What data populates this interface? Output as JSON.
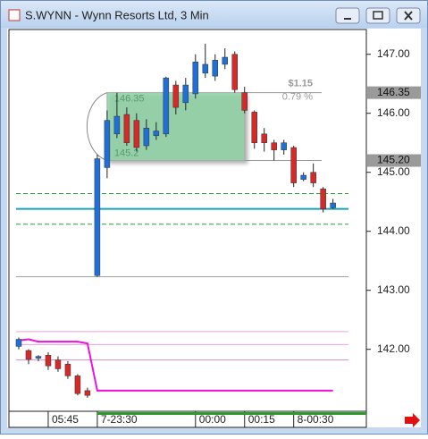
{
  "window_title": "S.WYNN - Wynn Resorts Ltd, 3 Min",
  "chart_data": {
    "type": "candlestick",
    "up_color": "#1f6fd6",
    "down_color": "#d42a2a",
    "x": [
      0,
      1,
      2,
      3,
      4,
      5,
      6,
      7,
      8,
      9,
      10,
      11,
      12,
      13,
      14,
      15,
      16,
      17,
      18,
      19,
      20,
      21,
      22,
      23,
      24,
      25,
      26,
      27,
      28,
      29,
      30,
      31,
      32
    ],
    "open": [
      142.05,
      141.98,
      141.85,
      141.9,
      141.82,
      141.75,
      141.55,
      141.3,
      143.25,
      145.08,
      145.65,
      145.98,
      145.88,
      145.45,
      145.62,
      145.65,
      146.48,
      146.18,
      146.33,
      146.68,
      146.63,
      146.83,
      147.0,
      146.35,
      146.02,
      145.65,
      145.5,
      145.38,
      145.42,
      144.88,
      145.0,
      144.72,
      144.4
    ],
    "high": [
      142.2,
      142.0,
      141.9,
      141.95,
      141.88,
      141.8,
      141.58,
      141.35,
      145.3,
      146.05,
      146.35,
      146.1,
      146.0,
      145.9,
      145.85,
      146.62,
      146.55,
      146.6,
      147.0,
      147.18,
      147.0,
      147.1,
      147.05,
      146.45,
      146.05,
      145.75,
      145.55,
      145.55,
      145.45,
      145.0,
      145.15,
      144.75,
      144.55
    ],
    "low": [
      142.0,
      141.75,
      141.8,
      141.65,
      141.62,
      141.5,
      141.22,
      141.18,
      143.23,
      144.9,
      145.58,
      145.45,
      145.35,
      145.38,
      145.55,
      145.6,
      145.98,
      146.05,
      146.25,
      146.6,
      146.55,
      146.75,
      146.35,
      146.0,
      145.4,
      145.35,
      145.2,
      145.3,
      144.75,
      144.85,
      144.75,
      144.32,
      144.38
    ],
    "close": [
      142.17,
      141.83,
      141.88,
      141.72,
      141.67,
      141.55,
      141.25,
      141.22,
      145.23,
      145.88,
      145.95,
      145.5,
      145.42,
      145.75,
      145.7,
      146.6,
      146.1,
      146.48,
      146.87,
      146.83,
      146.9,
      146.95,
      146.4,
      146.05,
      145.5,
      145.5,
      145.38,
      145.5,
      144.82,
      144.95,
      144.82,
      144.38,
      144.48
    ],
    "indicator": {
      "color": "#ee10dd",
      "values": [
        142.15,
        142.17,
        142.13,
        142.13,
        142.13,
        142.13,
        142.13,
        142.1,
        141.3,
        141.3,
        141.3,
        141.3,
        141.3,
        141.3,
        141.3,
        141.3,
        141.3,
        141.3,
        141.3,
        141.3,
        141.3,
        141.3,
        141.3,
        141.3,
        141.3,
        141.3,
        141.3,
        141.3,
        141.3,
        141.3,
        141.3,
        141.3,
        141.3
      ]
    },
    "levels": [
      {
        "value": 142.3,
        "color": "#e8a8d8"
      },
      {
        "value": 142.08,
        "color": "#f0a0dc"
      },
      {
        "value": 141.82,
        "color": "#c890c8"
      },
      {
        "value": 143.23,
        "color": "#a0a0a0"
      },
      {
        "value": 144.64,
        "color": "#2aa02a",
        "dashed": true
      },
      {
        "value": 144.12,
        "color": "#2aa02a",
        "dashed": true
      },
      {
        "value": 144.38,
        "color": "#1aa0b8"
      }
    ],
    "measure": {
      "start": 9,
      "end": 23,
      "high": 146.35,
      "low": 145.2,
      "change": {
        "value": 1.15,
        "label": "$1.15"
      },
      "percent": {
        "value": 0.79,
        "label": "0.79 %"
      }
    },
    "price_markers": [
      {
        "value": 146.35,
        "label": "146.35"
      },
      {
        "value": 145.2,
        "label": "145.20"
      }
    ],
    "xlim": [
      -1,
      35.4
    ],
    "ylim": [
      140.95,
      147.42
    ],
    "xticks": [
      {
        "value": 3,
        "label": "05:45"
      },
      {
        "value": 8,
        "label": "7-23:30"
      },
      {
        "value": 18,
        "label": "00:00"
      },
      {
        "value": 23,
        "label": "00:15"
      },
      {
        "value": 28,
        "label": "8-00:30"
      }
    ],
    "yticks": [
      {
        "value": 147,
        "label": "147.00"
      },
      {
        "value": 146,
        "label": "146.00"
      },
      {
        "value": 145,
        "label": "145.00"
      },
      {
        "value": 144,
        "label": "144.00"
      },
      {
        "value": 143,
        "label": "143.00"
      },
      {
        "value": 142,
        "label": "142.00"
      }
    ]
  }
}
